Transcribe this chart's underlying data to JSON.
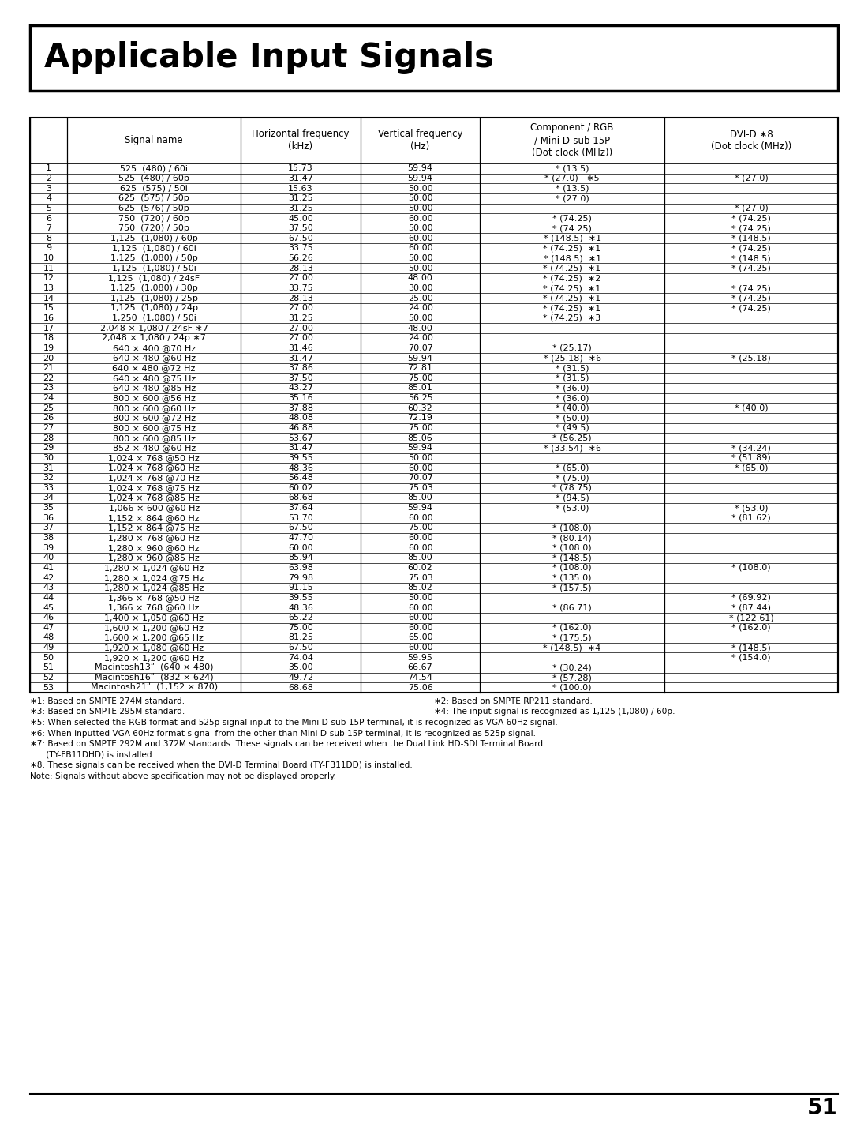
{
  "title": "Applicable Input Signals",
  "col_headers": [
    "",
    "Signal name",
    "Horizontal frequency\n(kHz)",
    "Vertical frequency\n(Hz)",
    "Component / RGB\n/ Mini D-sub 15P\n(Dot clock (MHz))",
    "DVI-D ∗8\n(Dot clock (MHz))"
  ],
  "col_props": [
    0.046,
    0.215,
    0.148,
    0.148,
    0.228,
    0.215
  ],
  "rows": [
    [
      "1",
      "525  (480) / 60i",
      "15.73",
      "59.94",
      "* (13.5)",
      ""
    ],
    [
      "2",
      "525  (480) / 60p",
      "31.47",
      "59.94",
      "* (27.0)   ∗5",
      "* (27.0)"
    ],
    [
      "3",
      "625  (575) / 50i",
      "15.63",
      "50.00",
      "* (13.5)",
      ""
    ],
    [
      "4",
      "625  (575) / 50p",
      "31.25",
      "50.00",
      "* (27.0)",
      ""
    ],
    [
      "5",
      "625  (576) / 50p",
      "31.25",
      "50.00",
      "",
      "* (27.0)"
    ],
    [
      "6",
      "750  (720) / 60p",
      "45.00",
      "60.00",
      "* (74.25)",
      "* (74.25)"
    ],
    [
      "7",
      "750  (720) / 50p",
      "37.50",
      "50.00",
      "* (74.25)",
      "* (74.25)"
    ],
    [
      "8",
      "1,125  (1,080) / 60p",
      "67.50",
      "60.00",
      "* (148.5)  ∗1",
      "* (148.5)"
    ],
    [
      "9",
      "1,125  (1,080) / 60i",
      "33.75",
      "60.00",
      "* (74.25)  ∗1",
      "* (74.25)"
    ],
    [
      "10",
      "1,125  (1,080) / 50p",
      "56.26",
      "50.00",
      "* (148.5)  ∗1",
      "* (148.5)"
    ],
    [
      "11",
      "1,125  (1,080) / 50i",
      "28.13",
      "50.00",
      "* (74.25)  ∗1",
      "* (74.25)"
    ],
    [
      "12",
      "1,125  (1,080) / 24sF",
      "27.00",
      "48.00",
      "* (74.25)  ∗2",
      ""
    ],
    [
      "13",
      "1,125  (1,080) / 30p",
      "33.75",
      "30.00",
      "* (74.25)  ∗1",
      "* (74.25)"
    ],
    [
      "14",
      "1,125  (1,080) / 25p",
      "28.13",
      "25.00",
      "* (74.25)  ∗1",
      "* (74.25)"
    ],
    [
      "15",
      "1,125  (1,080) / 24p",
      "27.00",
      "24.00",
      "* (74.25)  ∗1",
      "* (74.25)"
    ],
    [
      "16",
      "1,250  (1,080) / 50i",
      "31.25",
      "50.00",
      "* (74.25)  ∗3",
      ""
    ],
    [
      "17",
      "2,048 × 1,080 / 24sF ∗7",
      "27.00",
      "48.00",
      "",
      ""
    ],
    [
      "18",
      "2,048 × 1,080 / 24p ∗7",
      "27.00",
      "24.00",
      "",
      ""
    ],
    [
      "19",
      "640 × 400 @70 Hz",
      "31.46",
      "70.07",
      "* (25.17)",
      ""
    ],
    [
      "20",
      "640 × 480 @60 Hz",
      "31.47",
      "59.94",
      "* (25.18)  ∗6",
      "* (25.18)"
    ],
    [
      "21",
      "640 × 480 @72 Hz",
      "37.86",
      "72.81",
      "* (31.5)",
      ""
    ],
    [
      "22",
      "640 × 480 @75 Hz",
      "37.50",
      "75.00",
      "* (31.5)",
      ""
    ],
    [
      "23",
      "640 × 480 @85 Hz",
      "43.27",
      "85.01",
      "* (36.0)",
      ""
    ],
    [
      "24",
      "800 × 600 @56 Hz",
      "35.16",
      "56.25",
      "* (36.0)",
      ""
    ],
    [
      "25",
      "800 × 600 @60 Hz",
      "37.88",
      "60.32",
      "* (40.0)",
      "* (40.0)"
    ],
    [
      "26",
      "800 × 600 @72 Hz",
      "48.08",
      "72.19",
      "* (50.0)",
      ""
    ],
    [
      "27",
      "800 × 600 @75 Hz",
      "46.88",
      "75.00",
      "* (49.5)",
      ""
    ],
    [
      "28",
      "800 × 600 @85 Hz",
      "53.67",
      "85.06",
      "* (56.25)",
      ""
    ],
    [
      "29",
      "852 × 480 @60 Hz",
      "31.47",
      "59.94",
      "* (33.54)  ∗6",
      "* (34.24)"
    ],
    [
      "30",
      "1,024 × 768 @50 Hz",
      "39.55",
      "50.00",
      "",
      "* (51.89)"
    ],
    [
      "31",
      "1,024 × 768 @60 Hz",
      "48.36",
      "60.00",
      "* (65.0)",
      "* (65.0)"
    ],
    [
      "32",
      "1,024 × 768 @70 Hz",
      "56.48",
      "70.07",
      "* (75.0)",
      ""
    ],
    [
      "33",
      "1,024 × 768 @75 Hz",
      "60.02",
      "75.03",
      "* (78.75)",
      ""
    ],
    [
      "34",
      "1,024 × 768 @85 Hz",
      "68.68",
      "85.00",
      "* (94.5)",
      ""
    ],
    [
      "35",
      "1,066 × 600 @60 Hz",
      "37.64",
      "59.94",
      "* (53.0)",
      "* (53.0)"
    ],
    [
      "36",
      "1,152 × 864 @60 Hz",
      "53.70",
      "60.00",
      "",
      "* (81.62)"
    ],
    [
      "37",
      "1,152 × 864 @75 Hz",
      "67.50",
      "75.00",
      "* (108.0)",
      ""
    ],
    [
      "38",
      "1,280 × 768 @60 Hz",
      "47.70",
      "60.00",
      "* (80.14)",
      ""
    ],
    [
      "39",
      "1,280 × 960 @60 Hz",
      "60.00",
      "60.00",
      "* (108.0)",
      ""
    ],
    [
      "40",
      "1,280 × 960 @85 Hz",
      "85.94",
      "85.00",
      "* (148.5)",
      ""
    ],
    [
      "41",
      "1,280 × 1,024 @60 Hz",
      "63.98",
      "60.02",
      "* (108.0)",
      "* (108.0)"
    ],
    [
      "42",
      "1,280 × 1,024 @75 Hz",
      "79.98",
      "75.03",
      "* (135.0)",
      ""
    ],
    [
      "43",
      "1,280 × 1,024 @85 Hz",
      "91.15",
      "85.02",
      "* (157.5)",
      ""
    ],
    [
      "44",
      "1,366 × 768 @50 Hz",
      "39.55",
      "50.00",
      "",
      "* (69.92)"
    ],
    [
      "45",
      "1,366 × 768 @60 Hz",
      "48.36",
      "60.00",
      "* (86.71)",
      "* (87.44)"
    ],
    [
      "46",
      "1,400 × 1,050 @60 Hz",
      "65.22",
      "60.00",
      "",
      "* (122.61)"
    ],
    [
      "47",
      "1,600 × 1,200 @60 Hz",
      "75.00",
      "60.00",
      "* (162.0)",
      "* (162.0)"
    ],
    [
      "48",
      "1,600 × 1,200 @65 Hz",
      "81.25",
      "65.00",
      "* (175.5)",
      ""
    ],
    [
      "49",
      "1,920 × 1,080 @60 Hz",
      "67.50",
      "60.00",
      "* (148.5)  ∗4",
      "* (148.5)"
    ],
    [
      "50",
      "1,920 × 1,200 @60 Hz",
      "74.04",
      "59.95",
      "",
      "* (154.0)"
    ],
    [
      "51",
      "Macintosh13ʺ  (640 × 480)",
      "35.00",
      "66.67",
      "* (30.24)",
      ""
    ],
    [
      "52",
      "Macintosh16ʺ  (832 × 624)",
      "49.72",
      "74.54",
      "* (57.28)",
      ""
    ],
    [
      "53",
      "Macintosh21ʺ  (1,152 × 870)",
      "68.68",
      "75.06",
      "* (100.0)",
      ""
    ]
  ],
  "footnotes_left_col1": "∗1: Based on SMPTE 274M standard.",
  "footnotes_right_col1": "∗2: Based on SMPTE RP211 standard.",
  "footnotes_left_col2": "∗3: Based on SMPTE 295M standard.",
  "footnotes_right_col2": "∗4: The input signal is recognized as 1,125 (1,080) / 60p.",
  "footnote3": "∗5: When selected the RGB format and 525p signal input to the Mini D-sub 15P terminal, it is recognized as VGA 60Hz signal.",
  "footnote4": "∗6: When inputted VGA 60Hz format signal from the other than Mini D-sub 15P terminal, it is recognized as 525p signal.",
  "footnote5": "∗7: Based on SMPTE 292M and 372M standards. These signals can be received when the Dual Link HD-SDI Terminal Board",
  "footnote5b": "      (TY-FB11DHD) is installed.",
  "footnote6": "∗8: These signals can be received when the DVI-D Terminal Board (TY-FB11DD) is installed.",
  "footnote7": "Note: Signals without above specification may not be displayed properly.",
  "page_number": "51",
  "bg_color": "#ffffff"
}
